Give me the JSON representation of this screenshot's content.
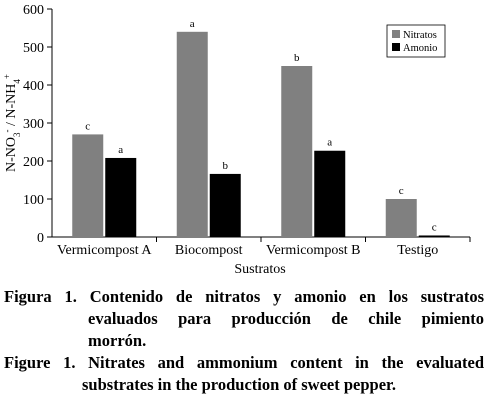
{
  "chart_data": {
    "type": "bar",
    "categories": [
      "Vermicompost A",
      "Biocompost",
      "Vermicompost B",
      "Testigo"
    ],
    "series": [
      {
        "name": "Nitratos",
        "color": "#808080",
        "values": [
          270,
          540,
          450,
          100
        ],
        "labels": [
          "c",
          "a",
          "b",
          "c"
        ]
      },
      {
        "name": "Amonio",
        "color": "#000000",
        "values": [
          208,
          166,
          227,
          4
        ],
        "labels": [
          "a",
          "b",
          "a",
          "c"
        ]
      }
    ],
    "xlabel": "Sustratos",
    "ylabel_parts": [
      "N-NO",
      "3",
      "-",
      " / N-NH",
      "4",
      "+"
    ],
    "ylim": [
      0,
      600
    ],
    "yticks": [
      0,
      100,
      200,
      300,
      400,
      500,
      600
    ],
    "grid": false,
    "legend_position": "top-right"
  },
  "captions": {
    "spanish": {
      "lines": [
        "Figura 1. Contenido de nitratos y amonio en los sustratos",
        "evaluados para producción de chile pimiento",
        "morrón."
      ]
    },
    "english": {
      "lines": [
        "Figure 1. Nitrates and ammonium content in the evaluated",
        "substrates in the production of sweet pepper."
      ]
    }
  }
}
